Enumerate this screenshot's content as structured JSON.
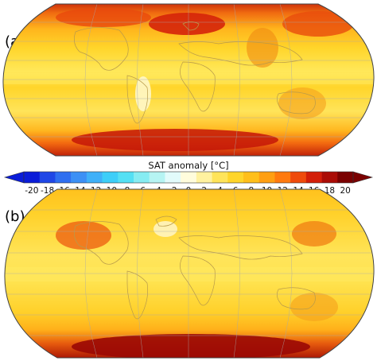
{
  "panels": [
    {
      "label": "(a)",
      "map": "robinson-world-sat-anomaly",
      "pattern": "strong Arctic/North Atlantic and Antarctic warming"
    },
    {
      "label": "(b)",
      "map": "robinson-world-sat-anomaly",
      "pattern": "strong Antarctic/Southern Ocean warming"
    }
  ],
  "colorbar": {
    "title": "SAT anomaly [°C]",
    "ticks": [
      "-20",
      "-18",
      "-16",
      "-14",
      "-12",
      "-10",
      "-8",
      "-6",
      "-4",
      "-2",
      "0",
      "2",
      "4",
      "6",
      "8",
      "10",
      "12",
      "14",
      "16",
      "18",
      "20"
    ],
    "range": [
      -20,
      20
    ],
    "colors": [
      "#0a1cd8",
      "#1f47e6",
      "#2f6ff0",
      "#3c90f5",
      "#3fb0f8",
      "#3dcef8",
      "#54e0f4",
      "#86ecf2",
      "#b6f4f3",
      "#e2fbfb",
      "#fffcdc",
      "#fff2a0",
      "#ffe45a",
      "#ffd52a",
      "#ffbf1a",
      "#ff9f12",
      "#ff7a0e",
      "#ef4b0b",
      "#d31e08",
      "#aa0c06",
      "#7a0000"
    ]
  },
  "colors": {
    "ocean_base": "#fbd12a",
    "land_outline": "#b89a4a",
    "frame": "#444444"
  }
}
